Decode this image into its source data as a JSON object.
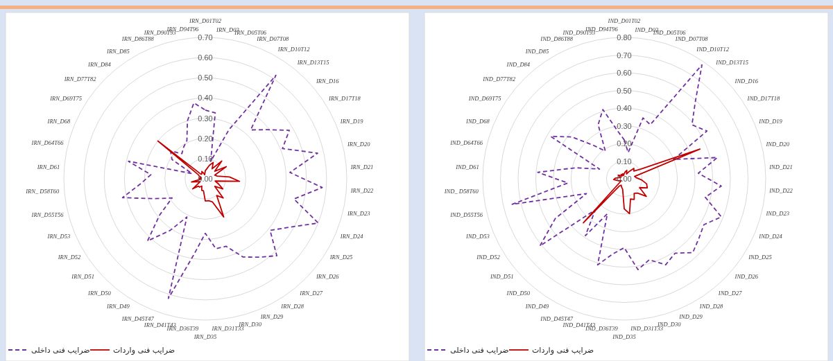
{
  "chart_data": [
    {
      "type": "radar",
      "categories": [
        "IRN_D01T02",
        "IRN_D03",
        "IRN_D05T06",
        "IRN_D07T08",
        "IRN_D10T12",
        "IRN_D13T15",
        "IRN_D16",
        "IRN_D17T18",
        "IRN_D19",
        "IRN_D20",
        "IRN_D21",
        "IRN_D22",
        "IRN_D23",
        "IRN_D24",
        "IRN_D25",
        "IRN_D26",
        "IRN_D27",
        "IRN_D28",
        "IRN_D29",
        "IRN_D30",
        "IRN_D31T33",
        "IRN_D35",
        "IRN_D36T39",
        "IRN_D41T43",
        "IRN_D45T47",
        "IRN_D49",
        "IRN_D50",
        "IRN_D51",
        "IRN_D52",
        "IRN_D53",
        "IRN_D55T56",
        "IRN_ D58T60",
        "IRN_D61",
        "IRN_D64T66",
        "IRN_D68",
        "IRN_D69T75",
        "IRN_D77T82",
        "IRN_D84",
        "IRN_D85",
        "IRN_D86T88",
        "IRN_D90T93",
        "IRN_D94T96"
      ],
      "series": [
        {
          "name": "ضرایب فنی داخلی",
          "color": "#7030a0",
          "line_style": "dashed",
          "values": [
            0.34,
            0.33,
            0.09,
            0.27,
            0.62,
            0.33,
            0.39,
            0.48,
            0.41,
            0.57,
            0.42,
            0.58,
            0.45,
            0.6,
            0.48,
            0.41,
            0.52,
            0.47,
            0.43,
            0.35,
            0.35,
            0.27,
            0.38,
            0.62,
            0.21,
            0.31,
            0.42,
            0.29,
            0.19,
            0.27,
            0.42,
            0.32,
            0.27,
            0.39,
            0.07,
            0.19,
            0.22,
            0.17,
            0.19,
            0.21,
            0.3,
            0.38
          ]
        },
        {
          "name": "ضرایب فنی واردات",
          "color": "#c00000",
          "line_style": "solid",
          "values": [
            0.04,
            0.05,
            0.07,
            0.09,
            0.06,
            0.12,
            0.06,
            0.12,
            0.05,
            0.06,
            0.12,
            0.17,
            0.05,
            0.07,
            0.1,
            0.06,
            0.13,
            0.1,
            0.21,
            0.12,
            0.11,
            0.11,
            0.06,
            0.06,
            0.04,
            0.05,
            0.05,
            0.08,
            0.03,
            0.04,
            0.07,
            0.02,
            0.03,
            0.02,
            0.03,
            0.04,
            0.3,
            0.03,
            0.03,
            0.04,
            0.03,
            0.02
          ]
        }
      ],
      "ylim": [
        0,
        0.7
      ],
      "yticks": [
        {
          "value": 0,
          "label": "0.00"
        },
        {
          "value": 0.1,
          "label": "0.10"
        },
        {
          "value": 0.2,
          "label": "0.20"
        },
        {
          "value": 0.3,
          "label": "0.30"
        },
        {
          "value": 0.4,
          "label": "0.40"
        },
        {
          "value": 0.5,
          "label": "0.50"
        },
        {
          "value": 0.6,
          "label": "0.60"
        },
        {
          "value": 0.7,
          "label": "0.70"
        }
      ],
      "grid": true,
      "legend": "bottom left"
    },
    {
      "type": "radar",
      "categories": [
        "IND_D01T02",
        "IND_D03",
        "IND_D05T06",
        "IND_D07T08",
        "IND_D10T12",
        "IND_D13T15",
        "IND_D16",
        "IND_D17T18",
        "IND_D19",
        "IND_D20",
        "IND_D21",
        "IND_D22",
        "IND_D23",
        "IND_D24",
        "IND_D25",
        "IND_D26",
        "IND_D27",
        "IND_D28",
        "IND_D29",
        "IND_D30",
        "IND_D31T33",
        "IND_D35",
        "IND_D36T39",
        "IND_D41T43",
        "IND_D45T47",
        "IND_D49",
        "IND_D50",
        "IND_D51",
        "IND_D52",
        "IND_D53",
        "IND_D55T56",
        "IND_ D58T60",
        "IND_D61",
        "IND_D64T66",
        "IND_D68",
        "IND_D69T75",
        "IND_D77T82",
        "IND_D84",
        "IND_D85",
        "IND_D86T88",
        "IND_D90T93",
        "IND_D94T96"
      ],
      "series": [
        {
          "name": "ضرایب فنی داخلی",
          "color": "#7030a0",
          "line_style": "dashed",
          "values": [
            0.22,
            0.15,
            0.36,
            0.34,
            0.78,
            0.59,
            0.49,
            0.54,
            0.3,
            0.54,
            0.42,
            0.55,
            0.47,
            0.59,
            0.52,
            0.54,
            0.57,
            0.51,
            0.54,
            0.48,
            0.52,
            0.39,
            0.43,
            0.51,
            0.22,
            0.39,
            0.24,
            0.61,
            0.45,
            0.23,
            0.65,
            0.32,
            0.49,
            0.28,
            0.15,
            0.48,
            0.38,
            0.26,
            0.19,
            0.34,
            0.41,
            0.28
          ]
        },
        {
          "name": "ضرایب فنی واردات",
          "color": "#c00000",
          "line_style": "solid",
          "values": [
            0.03,
            0.04,
            0.05,
            0.03,
            0.05,
            0.08,
            0.07,
            0.11,
            0.46,
            0.06,
            0.07,
            0.1,
            0.13,
            0.14,
            0.1,
            0.16,
            0.11,
            0.1,
            0.13,
            0.12,
            0.2,
            0.17,
            0.06,
            0.05,
            0.04,
            0.05,
            0.34,
            0.03,
            0.02,
            0.03,
            0.04,
            0.06,
            0.05,
            0.03,
            0.02,
            0.04,
            0.03,
            0.02,
            0.03,
            0.02,
            0.03,
            0.02
          ]
        }
      ],
      "ylim": [
        0,
        0.8
      ],
      "yticks": [
        {
          "value": 0,
          "label": "0.00"
        },
        {
          "value": 0.1,
          "label": "0.10"
        },
        {
          "value": 0.2,
          "label": "0.20"
        },
        {
          "value": 0.3,
          "label": "0.30"
        },
        {
          "value": 0.4,
          "label": "0.40"
        },
        {
          "value": 0.5,
          "label": "0.50"
        },
        {
          "value": 0.6,
          "label": "0.60"
        },
        {
          "value": 0.7,
          "label": "0.70"
        },
        {
          "value": 0.8,
          "label": "0.80"
        }
      ],
      "grid": true,
      "legend": "bottom left"
    }
  ]
}
